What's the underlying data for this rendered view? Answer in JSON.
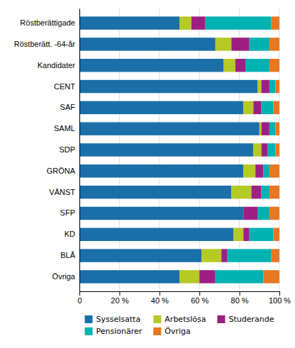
{
  "chart_data": {
    "type": "bar",
    "orientation": "horizontal",
    "stacked": true,
    "categories": [
      "Röstberättigade",
      "Röstberätt. -64-år",
      "Kandidater",
      "CENT",
      "SAF",
      "SAML",
      "SDP",
      "GRÖNA",
      "VÄNST",
      "SFP",
      "KD",
      "BLÅ",
      "Övriga"
    ],
    "series": [
      {
        "name": "Sysselsatta",
        "color": "#1a6fa8",
        "values": [
          50,
          68,
          72,
          89,
          82,
          90,
          87,
          82,
          76,
          82,
          77,
          61,
          50
        ]
      },
      {
        "name": "Arbetslösa",
        "color": "#b5c927",
        "values": [
          6,
          8,
          6,
          2,
          5,
          1,
          4,
          6,
          10,
          0,
          5,
          10,
          10
        ]
      },
      {
        "name": "Studerande",
        "color": "#9e1f83",
        "values": [
          7,
          9,
          5,
          4,
          4,
          4,
          3,
          4,
          5,
          7,
          3,
          3,
          8
        ]
      },
      {
        "name": "Pensionärer",
        "color": "#00b2b2",
        "values": [
          33,
          10,
          12,
          3,
          6,
          3,
          4,
          3,
          4,
          6,
          12,
          22,
          24
        ]
      },
      {
        "name": "Övriga",
        "color": "#e87722",
        "values": [
          4,
          5,
          5,
          2,
          3,
          2,
          2,
          5,
          5,
          5,
          3,
          4,
          8
        ]
      }
    ],
    "xlim": [
      0,
      100
    ],
    "xticks": [
      0,
      {
        "value": 20,
        "label": "20 %"
      },
      {
        "value": 40,
        "label": "40 %"
      },
      {
        "value": 60,
        "label": "60 %"
      },
      {
        "value": 80,
        "label": "80 %"
      },
      {
        "value": 100,
        "label": "100 %"
      }
    ],
    "grid": true,
    "legend": "bottom"
  }
}
